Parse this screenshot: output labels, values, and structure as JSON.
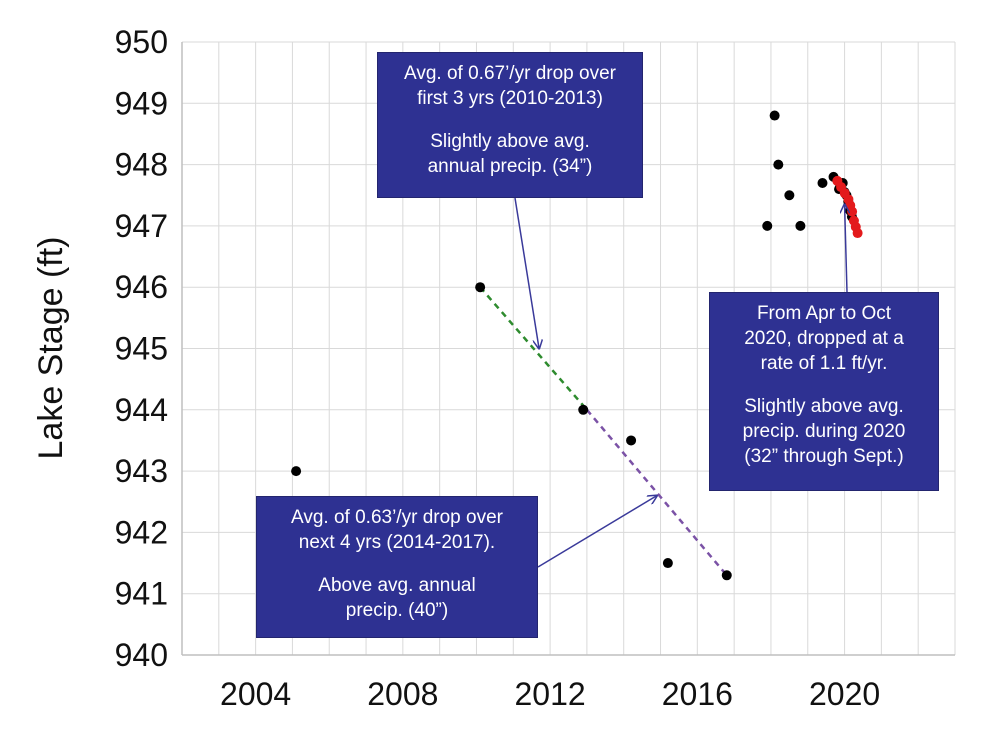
{
  "chart_data": {
    "type": "scatter",
    "title": "",
    "xlabel": "",
    "ylabel": "Lake Stage (ft)",
    "xlim": [
      2002,
      2023
    ],
    "ylim": [
      940,
      950
    ],
    "xticks": [
      2004,
      2008,
      2012,
      2016,
      2020
    ],
    "yticks": [
      940,
      941,
      942,
      943,
      944,
      945,
      946,
      947,
      948,
      949,
      950
    ],
    "grid": true,
    "colors": {
      "points": "#000000",
      "highlight": "#e31a1c",
      "trend1": "#2e8b2e",
      "trend2": "#7b52a6",
      "arrow": "#3a3a9a",
      "box": "#2e3192"
    },
    "series": [
      {
        "values": [
          [
            2005.1,
            943.0
          ],
          [
            2010.1,
            946.0
          ],
          [
            2012.9,
            944.0
          ],
          [
            2014.2,
            943.5
          ],
          [
            2015.2,
            941.5
          ],
          [
            2016.8,
            941.3
          ],
          [
            2017.9,
            947.0
          ],
          [
            2018.1,
            948.8
          ],
          [
            2018.2,
            948.0
          ],
          [
            2018.5,
            947.5
          ],
          [
            2018.8,
            947.0
          ],
          [
            2019.4,
            947.7
          ],
          [
            2019.7,
            947.8
          ],
          [
            2019.85,
            947.6
          ],
          [
            2019.95,
            947.7
          ],
          [
            2020.0,
            947.55
          ],
          [
            2020.05,
            947.5
          ],
          [
            2020.1,
            947.4
          ],
          [
            2020.15,
            947.25
          ],
          [
            2020.2,
            947.15
          ]
        ]
      },
      {
        "values": [
          [
            2019.75,
            947.75
          ],
          [
            2019.85,
            947.65
          ],
          [
            2019.95,
            947.55
          ],
          [
            2020.05,
            947.45
          ],
          [
            2020.1,
            947.35
          ],
          [
            2020.15,
            947.25
          ],
          [
            2020.2,
            947.1
          ],
          [
            2020.25,
            947.0
          ],
          [
            2020.3,
            946.9
          ]
        ]
      }
    ],
    "trendlines": [
      {
        "from": [
          2010.1,
          946.0
        ],
        "to": [
          2013.0,
          944.0
        ]
      },
      {
        "from": [
          2013.0,
          944.0
        ],
        "to": [
          2016.8,
          941.3
        ]
      }
    ],
    "annotations": [
      {
        "lines": [
          "Avg. of 0.67’/yr drop over",
          "first 3 yrs (2010-2013)"
        ],
        "lines2": [
          "Slightly above avg.",
          "annual precip. (34”)"
        ],
        "points_to": [
          2011.7,
          945.0
        ]
      },
      {
        "lines": [
          "From Apr to Oct",
          "2020, dropped at a",
          "rate of 1.1 ft/yr."
        ],
        "lines2": [
          "Slightly above avg.",
          "precip. during 2020",
          "(32” through Sept.)"
        ],
        "points_to": [
          2020.0,
          947.35
        ]
      },
      {
        "lines": [
          "Avg. of 0.63’/yr drop over",
          "next 4 yrs (2014-2017)."
        ],
        "lines2": [
          "Above avg. annual",
          "precip. (40”)"
        ],
        "points_to": [
          2014.9,
          942.6
        ]
      }
    ]
  }
}
